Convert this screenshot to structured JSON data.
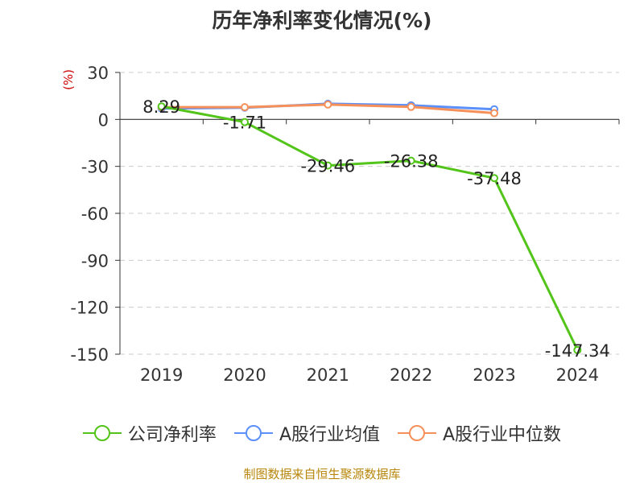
{
  "chart_data": {
    "type": "line",
    "title": "历年净利率变化情况(%)",
    "ylabel": "(%)",
    "categories": [
      "2019",
      "2020",
      "2021",
      "2022",
      "2023",
      "2024"
    ],
    "ylim": [
      -150,
      30
    ],
    "yticks": [
      30,
      0,
      -30,
      -60,
      -90,
      -120,
      -150
    ],
    "grid": true,
    "legend_position": "bottom",
    "series": [
      {
        "name": "公司净利率",
        "color": "#52c41a",
        "values": [
          8.29,
          -1.71,
          -29.46,
          -26.38,
          -37.48,
          -147.34
        ],
        "labels": [
          "8.29",
          "-1.71",
          "-29.46",
          "-26.38",
          "-37.48",
          "-147.34"
        ]
      },
      {
        "name": "A股行业均值",
        "color": "#5b8ff9",
        "values": [
          7.0,
          7.5,
          10.0,
          9.0,
          6.5,
          null
        ]
      },
      {
        "name": "A股行业中位数",
        "color": "#f6905a",
        "values": [
          7.8,
          7.8,
          9.5,
          8.0,
          4.0,
          null
        ]
      }
    ]
  },
  "source": "制图数据来自恒生聚源数据库"
}
